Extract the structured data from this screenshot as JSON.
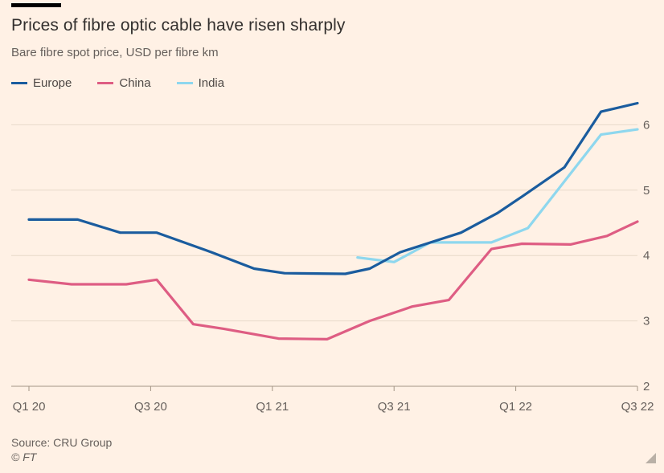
{
  "header": {
    "title": "Prices of fibre optic cable have risen sharply",
    "subtitle": "Bare fibre spot price, USD per fibre km"
  },
  "chart_data": {
    "type": "line",
    "title": "Prices of fibre optic cable have risen sharply",
    "subtitle": "Bare fibre spot price, USD per fibre km",
    "xlabel": "",
    "ylabel": "USD per fibre km",
    "x_unit": "quarters from Q1 2020",
    "x_range": [
      0,
      10
    ],
    "y_range": [
      2,
      6.6
    ],
    "y_ticks": [
      2,
      3,
      4,
      5,
      6
    ],
    "x_tick_positions": [
      0,
      2,
      4,
      6,
      8,
      10
    ],
    "x_tick_labels": [
      "Q1 20",
      "Q3 20",
      "Q1 21",
      "Q3 21",
      "Q1 22",
      "Q3 22"
    ],
    "grid": "horizontal",
    "legend_position": "top-left",
    "series": [
      {
        "name": "Europe",
        "color": "#1a5c9e",
        "points": [
          [
            0,
            4.55
          ],
          [
            0.8,
            4.55
          ],
          [
            1.5,
            4.35
          ],
          [
            2.1,
            4.35
          ],
          [
            3,
            4.05
          ],
          [
            3.7,
            3.8
          ],
          [
            4.2,
            3.73
          ],
          [
            5.2,
            3.72
          ],
          [
            5.6,
            3.8
          ],
          [
            6.1,
            4.05
          ],
          [
            6.6,
            4.2
          ],
          [
            7.1,
            4.35
          ],
          [
            7.7,
            4.65
          ],
          [
            8.1,
            4.9
          ],
          [
            8.8,
            5.35
          ],
          [
            9.4,
            6.2
          ],
          [
            10,
            6.33
          ]
        ]
      },
      {
        "name": "China",
        "color": "#de5d83",
        "points": [
          [
            0,
            3.63
          ],
          [
            0.7,
            3.56
          ],
          [
            1.6,
            3.56
          ],
          [
            2.1,
            3.63
          ],
          [
            2.7,
            2.95
          ],
          [
            3.2,
            2.88
          ],
          [
            4.1,
            2.73
          ],
          [
            4.9,
            2.72
          ],
          [
            5.6,
            3.0
          ],
          [
            6.3,
            3.22
          ],
          [
            6.9,
            3.32
          ],
          [
            7.6,
            4.1
          ],
          [
            8.1,
            4.18
          ],
          [
            8.9,
            4.17
          ],
          [
            9.5,
            4.3
          ],
          [
            10,
            4.52
          ]
        ]
      },
      {
        "name": "India",
        "color": "#8ed7ee",
        "points": [
          [
            5.4,
            3.97
          ],
          [
            6.0,
            3.9
          ],
          [
            6.6,
            4.2
          ],
          [
            7.6,
            4.2
          ],
          [
            8.2,
            4.42
          ],
          [
            9.4,
            5.85
          ],
          [
            10,
            5.93
          ]
        ]
      }
    ],
    "colors": {
      "background": "#fff1e5",
      "gridline": "#e7d9ca",
      "baseline": "#a39585",
      "axis_text": "#66605c"
    }
  },
  "footer": {
    "source": "Source: CRU Group",
    "credit": "© FT"
  }
}
